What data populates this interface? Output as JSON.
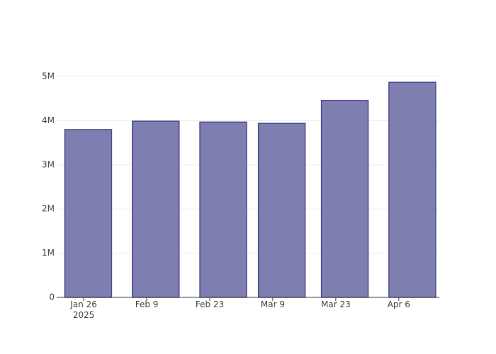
{
  "chart_data": {
    "type": "bar",
    "x": [
      "2025-01-27",
      "2025-02-11",
      "2025-02-26",
      "2025-03-11",
      "2025-03-25",
      "2025-04-09"
    ],
    "values": [
      3800000,
      3990000,
      3970000,
      3940000,
      4460000,
      4870000
    ],
    "color": "#7e7eb0",
    "edge_color": "#4d4b8c",
    "xlim": [
      "2025-01-20",
      "2025-04-15"
    ],
    "xticks": [
      {
        "value": "2025-01-26",
        "label": "Jan 26\n2025"
      },
      {
        "value": "2025-02-09",
        "label": "Feb 9"
      },
      {
        "value": "2025-02-23",
        "label": "Feb 23"
      },
      {
        "value": "2025-03-09",
        "label": "Mar 9"
      },
      {
        "value": "2025-03-23",
        "label": "Mar 23"
      },
      {
        "value": "2025-04-06",
        "label": "Apr 6"
      }
    ],
    "ylim": [
      0,
      5130000
    ],
    "yticks": [
      0,
      {
        "value": 1000000,
        "label": "1M"
      },
      {
        "value": 2000000,
        "label": "2M"
      },
      {
        "value": 3000000,
        "label": "3M"
      },
      {
        "value": 4000000,
        "label": "4M"
      },
      {
        "value": 5000000,
        "label": "5M"
      }
    ],
    "grid": true
  }
}
